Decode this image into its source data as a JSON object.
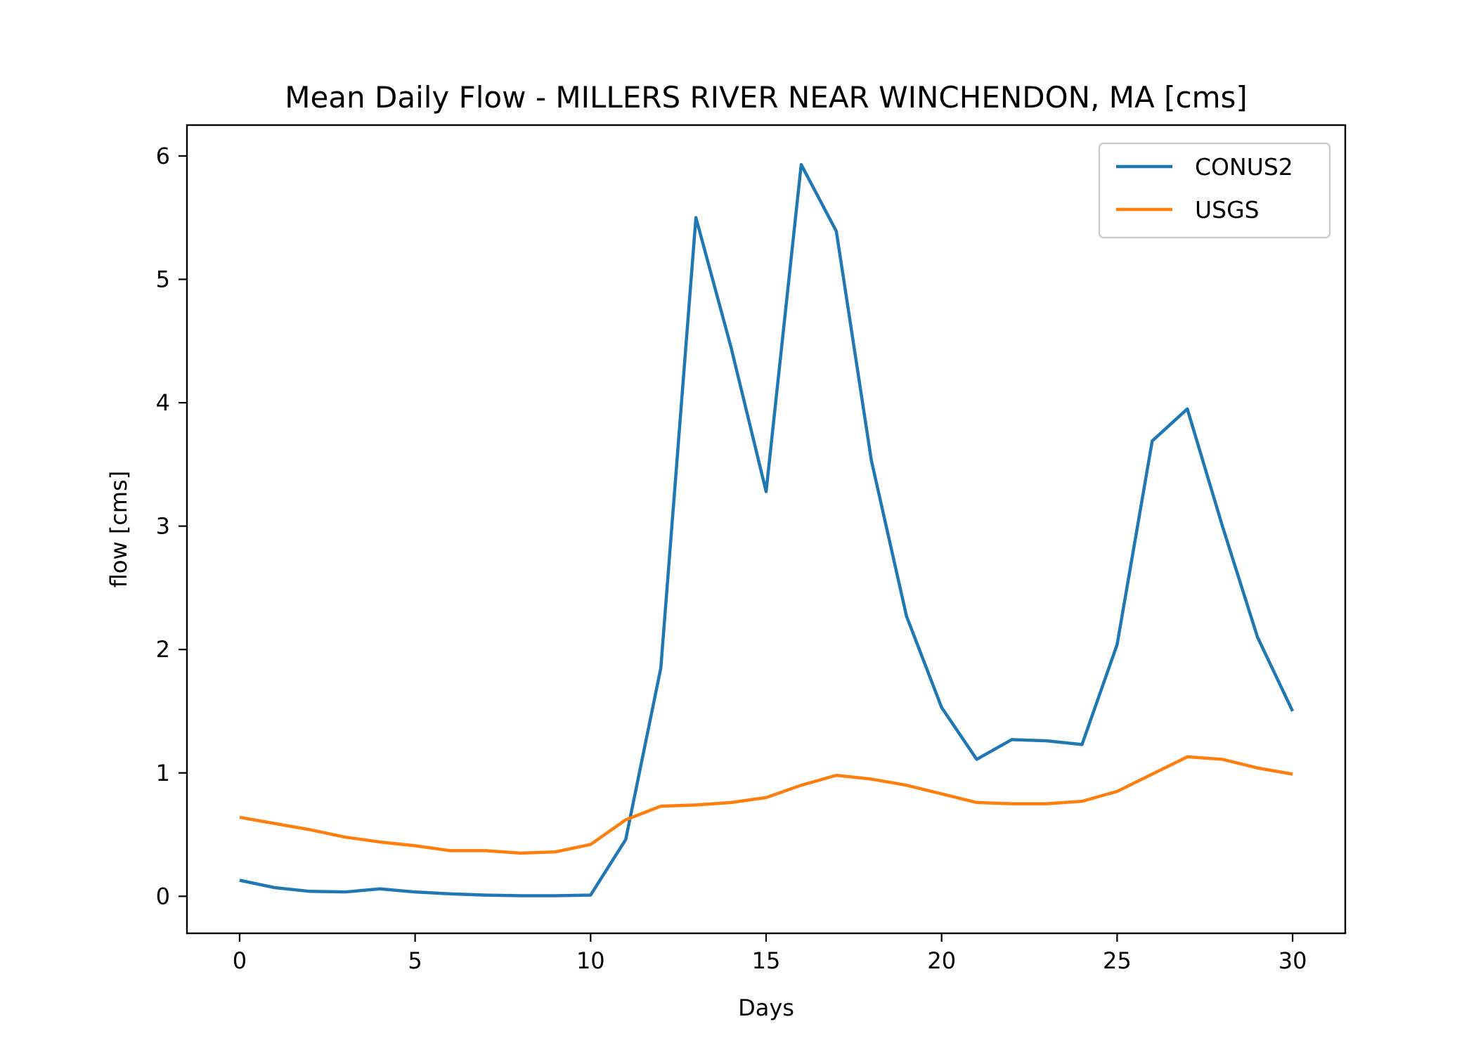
{
  "chart_data": {
    "type": "line",
    "title": "Mean Daily Flow - MILLERS RIVER NEAR WINCHENDON, MA [cms]",
    "xlabel": "Days",
    "ylabel": "flow [cms]",
    "xlim": [
      -1.5,
      31.5
    ],
    "ylim": [
      -0.3,
      6.25
    ],
    "xticks": [
      0,
      5,
      10,
      15,
      20,
      25,
      30
    ],
    "yticks": [
      0,
      1,
      2,
      3,
      4,
      5,
      6
    ],
    "grid": false,
    "legend_position": "top-right",
    "x": [
      0,
      1,
      2,
      3,
      4,
      5,
      6,
      7,
      8,
      9,
      10,
      11,
      12,
      13,
      14,
      15,
      16,
      17,
      18,
      19,
      20,
      21,
      22,
      23,
      24,
      25,
      26,
      27,
      28,
      29,
      30
    ],
    "series": [
      {
        "name": "CONUS2",
        "color": "#1f77b4",
        "values": [
          0.13,
          0.07,
          0.04,
          0.035,
          0.06,
          0.035,
          0.02,
          0.01,
          0.005,
          0.005,
          0.01,
          0.46,
          1.85,
          5.5,
          4.45,
          3.28,
          5.93,
          5.39,
          3.53,
          2.27,
          1.53,
          1.11,
          1.27,
          1.26,
          1.23,
          2.04,
          3.69,
          3.95,
          3.0,
          2.1,
          1.5
        ]
      },
      {
        "name": "USGS",
        "color": "#ff7f0e",
        "values": [
          0.64,
          0.59,
          0.54,
          0.48,
          0.44,
          0.41,
          0.37,
          0.37,
          0.35,
          0.36,
          0.42,
          0.62,
          0.73,
          0.74,
          0.76,
          0.8,
          0.9,
          0.98,
          0.95,
          0.9,
          0.83,
          0.76,
          0.75,
          0.75,
          0.77,
          0.85,
          0.99,
          1.13,
          1.11,
          1.04,
          0.99
        ]
      }
    ]
  }
}
